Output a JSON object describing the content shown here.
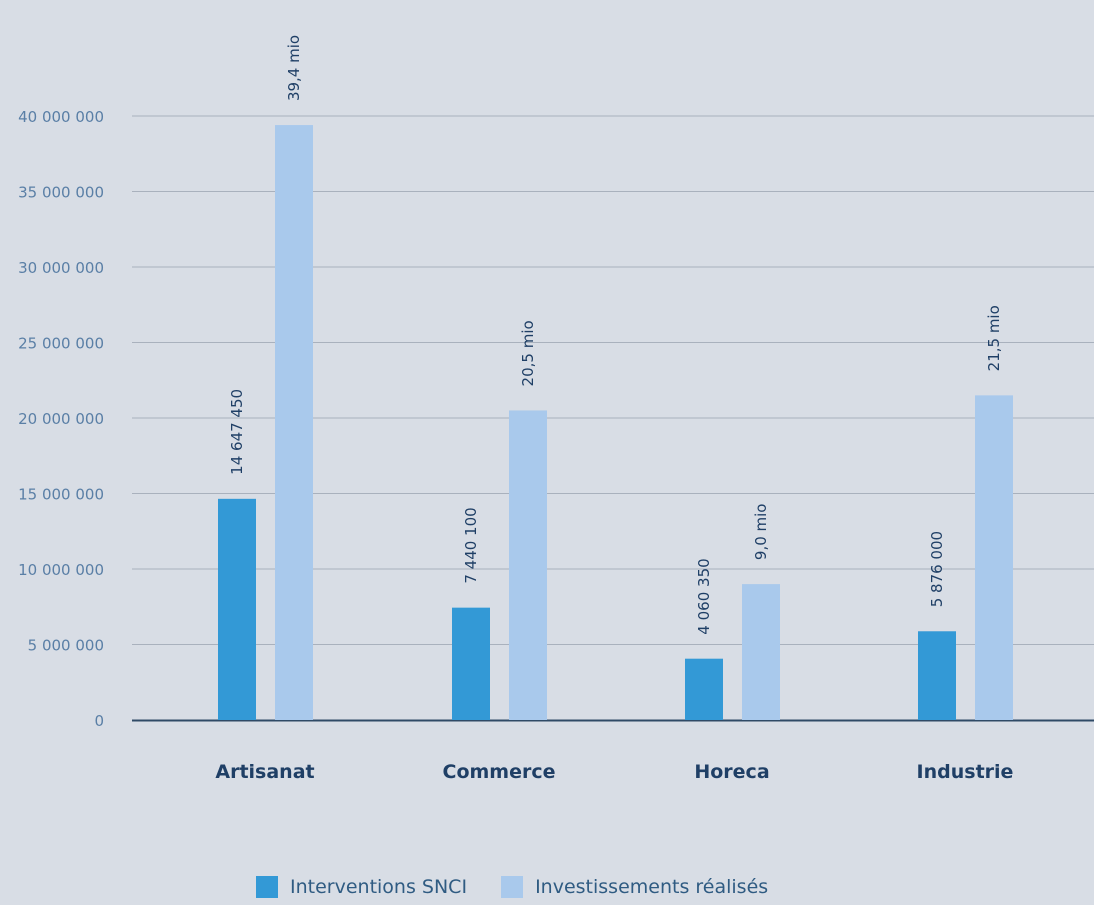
{
  "chart_data": {
    "type": "bar",
    "categories": [
      "Artisanat",
      "Commerce",
      "Horeca",
      "Industrie"
    ],
    "series": [
      {
        "name": "Interventions SNCI",
        "values": [
          14647450,
          7440100,
          4060350,
          5876000
        ],
        "labels": [
          "14 647 450",
          "7 440 100",
          "4 060 350",
          "5 876 000"
        ],
        "color": "#3399d6"
      },
      {
        "name": "Investissements réalisés",
        "values": [
          39400000,
          20500000,
          9000000,
          21500000
        ],
        "labels": [
          "39,4 mio",
          "20,5 mio",
          "9,0 mio",
          "21,5 mio"
        ],
        "color": "#a9c9ec"
      }
    ],
    "ylim": [
      0,
      40000000
    ],
    "yticks": [
      0,
      5000000,
      10000000,
      15000000,
      20000000,
      25000000,
      30000000,
      35000000,
      40000000
    ],
    "ytick_labels": [
      "0",
      "5 000 000",
      "10 000 000",
      "15 000 000",
      "20 000 000",
      "25 000 000",
      "30 000 000",
      "35 000 000",
      "40 000 000"
    ],
    "grid": true,
    "legend_position": "bottom-center",
    "title": "",
    "xlabel": "",
    "ylabel": ""
  },
  "colors": {
    "background": "#d8dde5",
    "gridline": "#a9b1bd",
    "axis": "#2f4a66",
    "tick_text": "#5a7fa6",
    "category_text": "#1f3f66",
    "data_label": "#1f3f66"
  }
}
